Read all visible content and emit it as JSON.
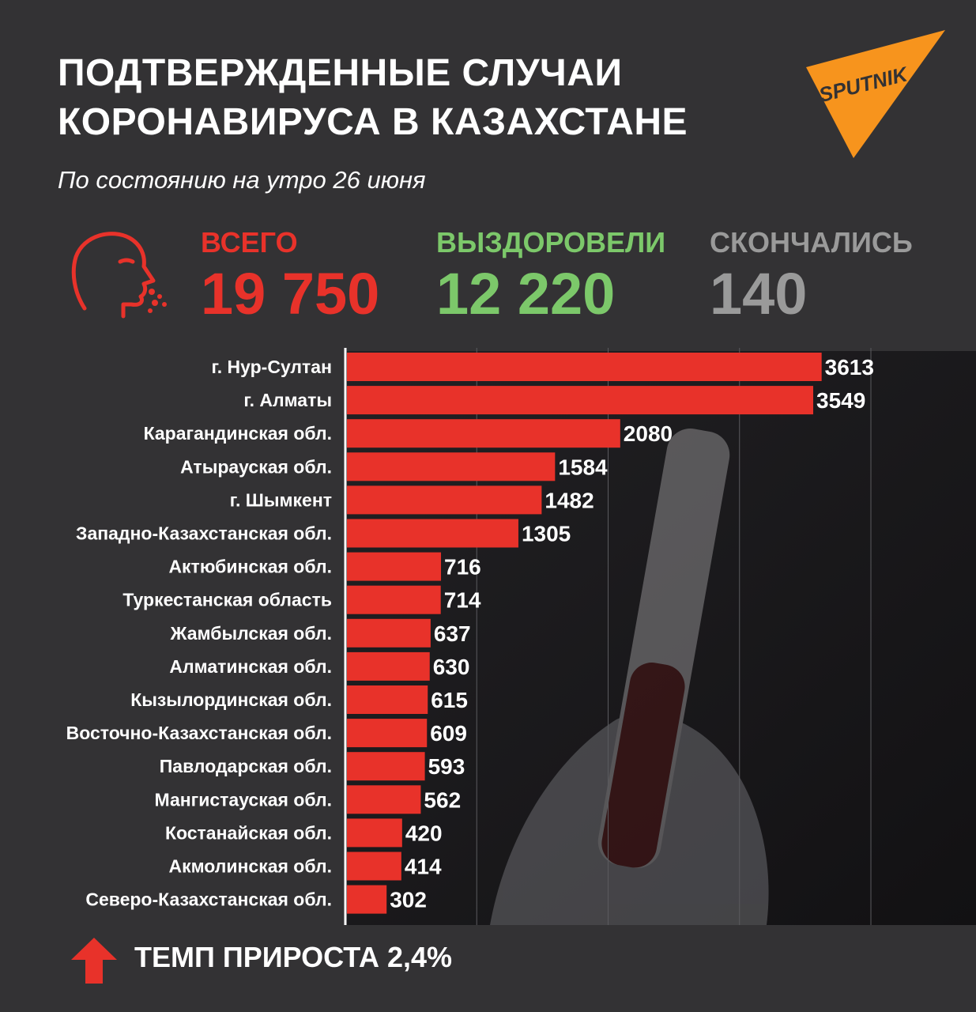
{
  "title_line1": "ПОДТВЕРЖДЕННЫЕ СЛУЧАИ",
  "title_line2": "КОРОНАВИРУСА В КАЗАХСТАНЕ",
  "subtitle": "По состоянию на утро 26 июня",
  "logo_text": "SPUTNIK",
  "stats": {
    "total": {
      "label": "ВСЕГО",
      "value": "19 750",
      "color": "#e8322a"
    },
    "recovered": {
      "label": "ВЫЗДОРОВЕЛИ",
      "value": "12 220",
      "color": "#7cc86a"
    },
    "died": {
      "label": "СКОНЧАЛИСЬ",
      "value": "140",
      "color": "#9a9a9a"
    }
  },
  "growth_text": "ТЕМП ПРИРОСТА 2,4%",
  "colors": {
    "bar": "#e8322a",
    "logo": "#f7941d",
    "background": "#333234"
  },
  "icons": {
    "head": "sneezing-head-icon",
    "growth": "up-arrow-icon"
  },
  "chart_data": {
    "type": "bar",
    "orientation": "horizontal",
    "categories": [
      "г. Нур-Султан",
      "г. Алматы",
      "Карагандинская обл.",
      "Атырауская обл.",
      "г. Шымкент",
      "Западно-Казахстанская обл.",
      "Актюбинская обл.",
      "Туркестанская область",
      "Жамбылская обл.",
      "Алматинская обл.",
      "Кызылординская обл.",
      "Восточно-Казахстанская обл.",
      "Павлодарская обл.",
      "Мангистауская обл.",
      "Костанайская обл.",
      "Акмолинская обл.",
      "Северо-Казахстанская обл."
    ],
    "values": [
      3613,
      3549,
      2080,
      1584,
      1482,
      1305,
      716,
      714,
      637,
      630,
      615,
      609,
      593,
      562,
      420,
      414,
      302
    ],
    "xlim": [
      0,
      4800
    ],
    "grid": true
  }
}
